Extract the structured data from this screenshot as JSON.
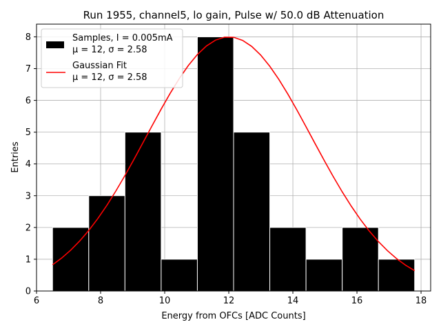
{
  "chart_data": {
    "type": "bar",
    "title": "Run 1955, channel5, lo gain, Pulse w/ 50.0 dB Attenuation",
    "xlabel": "Energy from OFCs [ADC Counts]",
    "ylabel": "Entries",
    "xlim": [
      6.0,
      18.3
    ],
    "ylim": [
      0,
      8.4
    ],
    "xticks": [
      6,
      8,
      10,
      12,
      14,
      16,
      18
    ],
    "yticks": [
      0,
      1,
      2,
      3,
      4,
      5,
      6,
      7,
      8
    ],
    "grid": true,
    "legend_position": "top-left",
    "histogram": {
      "name": "Samples, I = 0.005mA",
      "stats": "μ = 12, σ = 2.58",
      "bin_edges": [
        6.5,
        7.63,
        8.76,
        9.89,
        11.02,
        12.15,
        13.28,
        14.41,
        15.54,
        16.67,
        17.8
      ],
      "counts": [
        2,
        3,
        5,
        1,
        8,
        5,
        2,
        1,
        2,
        1
      ],
      "color": "#000000",
      "edge_color": "#ffffff"
    },
    "fit": {
      "name": "Gaussian Fit",
      "stats": "μ = 12, σ = 2.58",
      "amplitude": 8.0,
      "mu": 12,
      "sigma": 2.58,
      "x_range": [
        6.5,
        17.8
      ],
      "color": "#ff0000"
    }
  }
}
